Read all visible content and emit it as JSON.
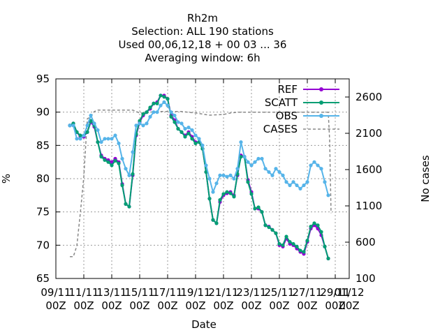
{
  "chart_data": {
    "type": "line",
    "title_lines": [
      "Rh2m",
      "Selection: ALL    190 stations",
      "Used  00,06,12,18 + 00 03 ... 36",
      "Averaging window:  6h"
    ],
    "xlabel": "Date",
    "ylabel": "%",
    "y2label": "No cases",
    "xlim": [
      0,
      21
    ],
    "ylim": [
      65,
      95
    ],
    "y2lim": [
      100,
      2850
    ],
    "x_ticks": [
      {
        "x": 0,
        "label": [
          "09/11",
          "00Z"
        ]
      },
      {
        "x": 2,
        "label": [
          "11/11",
          "00Z"
        ]
      },
      {
        "x": 4,
        "label": [
          "13/11",
          "00Z"
        ]
      },
      {
        "x": 6,
        "label": [
          "15/11",
          "00Z"
        ]
      },
      {
        "x": 8,
        "label": [
          "17/11",
          "00Z"
        ]
      },
      {
        "x": 10,
        "label": [
          "19/11",
          "00Z"
        ]
      },
      {
        "x": 12,
        "label": [
          "21/11",
          "00Z"
        ]
      },
      {
        "x": 14,
        "label": [
          "23/11",
          "00Z"
        ]
      },
      {
        "x": 16,
        "label": [
          "25/11",
          "00Z"
        ]
      },
      {
        "x": 18,
        "label": [
          "27/11",
          "00Z"
        ]
      },
      {
        "x": 20,
        "label": [
          "29/11",
          "00Z"
        ]
      },
      {
        "x": 21,
        "label": [
          "01/12",
          "00Z"
        ]
      }
    ],
    "y_ticks": [
      65,
      70,
      75,
      80,
      85,
      90,
      95
    ],
    "y2_ticks": [
      100,
      600,
      1100,
      1600,
      2100,
      2600
    ],
    "grid": true,
    "legend_position": "top-right",
    "series": [
      {
        "name": "REF",
        "axis": "y",
        "color": "#9400d3",
        "marker": "circle",
        "values": [
          [
            1.0,
            88.0
          ],
          [
            1.25,
            88.3
          ],
          [
            1.5,
            87.0
          ],
          [
            1.75,
            86.3
          ],
          [
            2.0,
            86.3
          ],
          [
            2.25,
            87.0
          ],
          [
            2.5,
            88.5
          ],
          [
            2.75,
            87.8
          ],
          [
            3.0,
            85.5
          ],
          [
            3.25,
            83.5
          ],
          [
            3.5,
            83.0
          ],
          [
            3.75,
            82.8
          ],
          [
            4.0,
            82.5
          ],
          [
            4.25,
            83.0
          ],
          [
            4.5,
            82.5
          ],
          [
            4.75,
            79.2
          ],
          [
            5.0,
            76.2
          ],
          [
            5.25,
            75.8
          ],
          [
            5.5,
            80.5
          ],
          [
            5.75,
            86.5
          ],
          [
            6.0,
            88.5
          ],
          [
            6.25,
            89.5
          ],
          [
            6.5,
            90.0
          ],
          [
            6.75,
            90.5
          ],
          [
            7.0,
            91.3
          ],
          [
            7.25,
            91.5
          ],
          [
            7.5,
            92.5
          ],
          [
            7.75,
            92.5
          ],
          [
            8.0,
            92.0
          ],
          [
            8.25,
            89.5
          ],
          [
            8.5,
            88.8
          ],
          [
            8.75,
            87.5
          ],
          [
            9.0,
            87.0
          ],
          [
            9.25,
            86.5
          ],
          [
            9.5,
            87.0
          ],
          [
            9.75,
            86.3
          ],
          [
            10.0,
            85.5
          ],
          [
            10.25,
            85.5
          ],
          [
            10.5,
            84.5
          ],
          [
            10.75,
            81.0
          ],
          [
            11.0,
            77.0
          ],
          [
            11.25,
            73.8
          ],
          [
            11.5,
            73.3
          ],
          [
            11.75,
            76.5
          ],
          [
            12.0,
            77.5
          ],
          [
            12.25,
            77.8
          ],
          [
            12.5,
            78.0
          ],
          [
            12.75,
            77.5
          ],
          [
            13.0,
            80.5
          ],
          [
            13.25,
            83.5
          ],
          [
            13.5,
            83.3
          ],
          [
            13.75,
            79.8
          ],
          [
            14.0,
            78.0
          ],
          [
            14.25,
            75.5
          ],
          [
            14.5,
            75.5
          ],
          [
            14.75,
            75.0
          ],
          [
            15.0,
            73.0
          ],
          [
            15.25,
            72.8
          ],
          [
            15.5,
            72.3
          ],
          [
            15.75,
            71.8
          ],
          [
            16.0,
            70.0
          ],
          [
            16.25,
            69.8
          ],
          [
            16.5,
            71.0
          ],
          [
            16.75,
            70.2
          ],
          [
            17.0,
            70.0
          ],
          [
            17.25,
            69.5
          ],
          [
            17.5,
            69.0
          ],
          [
            17.75,
            68.7
          ],
          [
            18.0,
            70.5
          ],
          [
            18.25,
            72.5
          ],
          [
            18.5,
            73.0
          ],
          [
            18.75,
            72.5
          ],
          [
            19.0,
            71.5
          ],
          [
            19.25,
            69.8
          ],
          [
            19.5,
            68.0
          ]
        ]
      },
      {
        "name": "SCATT",
        "axis": "y",
        "color": "#009e73",
        "marker": "circle",
        "values": [
          [
            1.0,
            88.0
          ],
          [
            1.25,
            88.3
          ],
          [
            1.5,
            87.0
          ],
          [
            1.75,
            86.5
          ],
          [
            2.0,
            86.5
          ],
          [
            2.25,
            87.0
          ],
          [
            2.5,
            88.7
          ],
          [
            2.75,
            88.0
          ],
          [
            3.0,
            85.5
          ],
          [
            3.25,
            83.3
          ],
          [
            3.5,
            82.8
          ],
          [
            3.75,
            82.5
          ],
          [
            4.0,
            82.0
          ],
          [
            4.25,
            82.7
          ],
          [
            4.5,
            82.3
          ],
          [
            4.75,
            79.0
          ],
          [
            5.0,
            76.2
          ],
          [
            5.25,
            75.8
          ],
          [
            5.5,
            80.7
          ],
          [
            5.75,
            86.7
          ],
          [
            6.0,
            88.7
          ],
          [
            6.25,
            89.7
          ],
          [
            6.5,
            90.0
          ],
          [
            6.75,
            90.7
          ],
          [
            7.0,
            91.3
          ],
          [
            7.25,
            91.3
          ],
          [
            7.5,
            92.5
          ],
          [
            7.75,
            92.3
          ],
          [
            8.0,
            92.0
          ],
          [
            8.25,
            89.3
          ],
          [
            8.5,
            88.5
          ],
          [
            8.75,
            87.5
          ],
          [
            9.0,
            87.0
          ],
          [
            9.25,
            86.3
          ],
          [
            9.5,
            86.8
          ],
          [
            9.75,
            86.0
          ],
          [
            10.0,
            85.3
          ],
          [
            10.25,
            85.5
          ],
          [
            10.5,
            84.5
          ],
          [
            10.75,
            81.0
          ],
          [
            11.0,
            77.0
          ],
          [
            11.25,
            73.8
          ],
          [
            11.5,
            73.3
          ],
          [
            11.75,
            76.8
          ],
          [
            12.0,
            77.7
          ],
          [
            12.25,
            78.0
          ],
          [
            12.5,
            77.8
          ],
          [
            12.75,
            77.3
          ],
          [
            13.0,
            80.7
          ],
          [
            13.25,
            83.3
          ],
          [
            13.5,
            83.3
          ],
          [
            13.75,
            79.5
          ],
          [
            14.0,
            77.7
          ],
          [
            14.25,
            75.5
          ],
          [
            14.5,
            75.7
          ],
          [
            14.75,
            75.0
          ],
          [
            15.0,
            73.0
          ],
          [
            15.25,
            72.7
          ],
          [
            15.5,
            72.3
          ],
          [
            15.75,
            71.8
          ],
          [
            16.0,
            70.2
          ],
          [
            16.25,
            70.0
          ],
          [
            16.5,
            71.3
          ],
          [
            16.75,
            70.5
          ],
          [
            17.0,
            70.2
          ],
          [
            17.25,
            69.8
          ],
          [
            17.5,
            69.2
          ],
          [
            17.75,
            69.0
          ],
          [
            18.0,
            70.7
          ],
          [
            18.25,
            72.8
          ],
          [
            18.5,
            73.3
          ],
          [
            18.75,
            73.0
          ],
          [
            19.0,
            72.0
          ],
          [
            19.25,
            69.8
          ],
          [
            19.5,
            68.0
          ]
        ]
      },
      {
        "name": "OBS",
        "axis": "y",
        "color": "#56b4e9",
        "marker": "circle",
        "values": [
          [
            1.0,
            88.0
          ],
          [
            1.25,
            88.0
          ],
          [
            1.5,
            86.0
          ],
          [
            1.75,
            86.0
          ],
          [
            2.0,
            86.5
          ],
          [
            2.25,
            88.0
          ],
          [
            2.5,
            89.5
          ],
          [
            2.75,
            88.3
          ],
          [
            3.0,
            87.3
          ],
          [
            3.25,
            85.5
          ],
          [
            3.5,
            86.0
          ],
          [
            3.75,
            86.0
          ],
          [
            4.0,
            86.0
          ],
          [
            4.25,
            86.5
          ],
          [
            4.5,
            85.3
          ],
          [
            4.75,
            83.0
          ],
          [
            5.0,
            81.5
          ],
          [
            5.25,
            80.5
          ],
          [
            5.5,
            84.0
          ],
          [
            5.75,
            88.0
          ],
          [
            6.0,
            88.3
          ],
          [
            6.25,
            88.0
          ],
          [
            6.5,
            88.3
          ],
          [
            6.75,
            89.3
          ],
          [
            7.0,
            90.0
          ],
          [
            7.25,
            90.0
          ],
          [
            7.5,
            91.0
          ],
          [
            7.75,
            91.5
          ],
          [
            8.0,
            91.0
          ],
          [
            8.25,
            90.0
          ],
          [
            8.5,
            89.5
          ],
          [
            8.75,
            88.5
          ],
          [
            9.0,
            88.3
          ],
          [
            9.25,
            87.5
          ],
          [
            9.5,
            87.7
          ],
          [
            9.75,
            87.3
          ],
          [
            10.0,
            86.5
          ],
          [
            10.25,
            86.0
          ],
          [
            10.5,
            85.0
          ],
          [
            10.75,
            82.0
          ],
          [
            11.0,
            80.0
          ],
          [
            11.25,
            78.0
          ],
          [
            11.5,
            79.3
          ],
          [
            11.75,
            80.5
          ],
          [
            12.0,
            80.5
          ],
          [
            12.25,
            80.3
          ],
          [
            12.5,
            80.5
          ],
          [
            12.75,
            80.0
          ],
          [
            13.0,
            81.5
          ],
          [
            13.25,
            85.5
          ],
          [
            13.5,
            83.3
          ],
          [
            13.75,
            82.5
          ],
          [
            14.0,
            82.0
          ],
          [
            14.25,
            82.5
          ],
          [
            14.5,
            83.0
          ],
          [
            14.75,
            83.0
          ],
          [
            15.0,
            81.5
          ],
          [
            15.25,
            81.0
          ],
          [
            15.5,
            80.5
          ],
          [
            15.75,
            81.5
          ],
          [
            16.0,
            81.0
          ],
          [
            16.25,
            80.5
          ],
          [
            16.5,
            79.5
          ],
          [
            16.75,
            79.0
          ],
          [
            17.0,
            79.5
          ],
          [
            17.25,
            79.0
          ],
          [
            17.5,
            78.5
          ],
          [
            17.75,
            79.0
          ],
          [
            18.0,
            79.5
          ],
          [
            18.25,
            82.0
          ],
          [
            18.5,
            82.5
          ],
          [
            18.75,
            82.0
          ],
          [
            19.0,
            81.5
          ],
          [
            19.25,
            79.5
          ],
          [
            19.5,
            77.5
          ]
        ]
      },
      {
        "name": "CASES",
        "axis": "y2",
        "color": "#888888",
        "dashed": true,
        "values": [
          [
            1.0,
            400
          ],
          [
            1.25,
            400
          ],
          [
            1.5,
            550
          ],
          [
            1.75,
            1000
          ],
          [
            2.0,
            1500
          ],
          [
            2.25,
            2300
          ],
          [
            2.5,
            2330
          ],
          [
            2.75,
            2400
          ],
          [
            3.0,
            2420
          ],
          [
            4.0,
            2420
          ],
          [
            5.0,
            2420
          ],
          [
            5.5,
            2420
          ],
          [
            6.0,
            2380
          ],
          [
            6.5,
            2380
          ],
          [
            7.0,
            2400
          ],
          [
            8.0,
            2400
          ],
          [
            9.0,
            2400
          ],
          [
            10.0,
            2380
          ],
          [
            11.0,
            2350
          ],
          [
            12.0,
            2360
          ],
          [
            12.5,
            2380
          ],
          [
            13.0,
            2390
          ],
          [
            14.0,
            2390
          ],
          [
            15.0,
            2390
          ],
          [
            16.0,
            2390
          ],
          [
            17.0,
            2390
          ],
          [
            18.0,
            2390
          ],
          [
            19.0,
            2390
          ],
          [
            19.5,
            2390
          ],
          [
            19.6,
            2000
          ],
          [
            19.7,
            1000
          ]
        ]
      }
    ]
  }
}
